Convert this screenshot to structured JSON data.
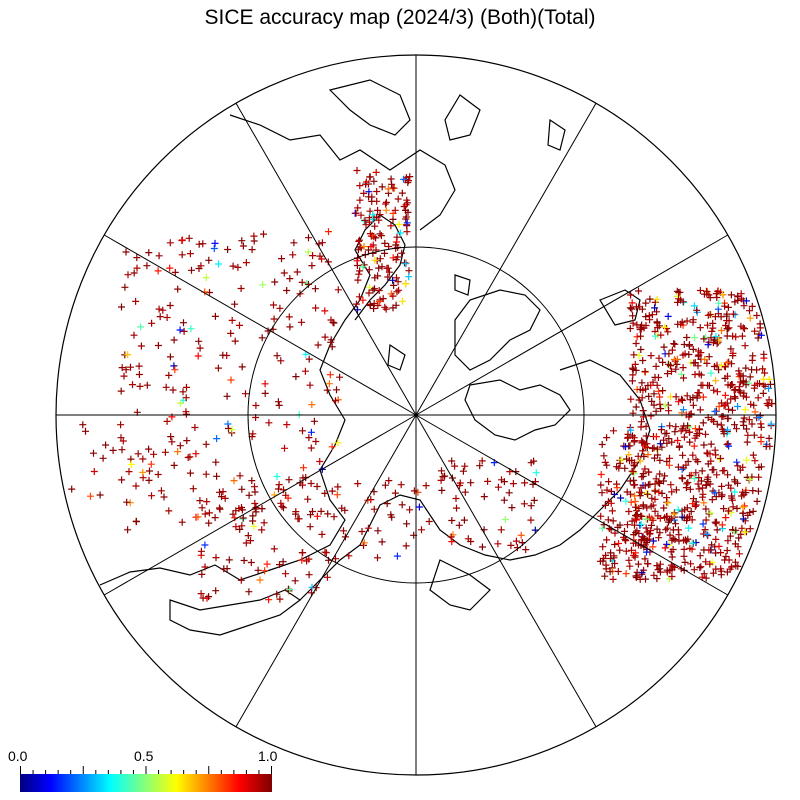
{
  "title": "SICE accuracy map (2024/3) (Both)(Total)",
  "colorbar": {
    "min_label": "0.0",
    "mid_label": "0.5",
    "max_label": "1.0",
    "colormap": "jet",
    "range": [
      0.0,
      1.0
    ]
  },
  "map": {
    "projection": "north-polar-stereographic",
    "meridian_count": 12,
    "latitude_circle": true,
    "marker": "plus",
    "coastline_color": "#000000",
    "dominant_marker_color": "#990000"
  }
}
